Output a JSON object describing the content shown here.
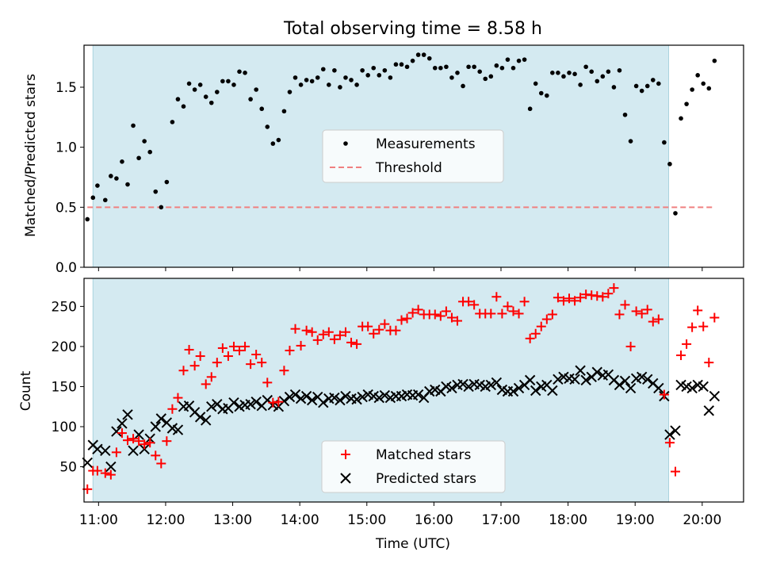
{
  "figure": {
    "title": "Total observing time = 8.58 h"
  },
  "colors": {
    "shade": "#d4eaf1",
    "threshold": "#f08080",
    "measurements": "#000000",
    "matched": "#ff0000",
    "predicted": "#000000"
  },
  "chart_data": [
    {
      "type": "scatter",
      "ylabel": "Matched/Predicted stars",
      "xlim": [
        "10:47",
        "20:37"
      ],
      "ylim": [
        0.0,
        1.85
      ],
      "yticks": [
        0.0,
        0.5,
        1.0,
        1.5
      ],
      "ytick_labels": [
        "0.0",
        "0.5",
        "1.0",
        "1.5"
      ],
      "shaded_interval": [
        "10:55",
        "19:30"
      ],
      "legend": {
        "position": "center",
        "entries": [
          "Measurements",
          "Threshold"
        ]
      },
      "threshold": {
        "name": "Threshold",
        "y": 0.5,
        "x": [
          "10:50",
          "20:10"
        ]
      },
      "series": [
        {
          "name": "Measurements",
          "marker": "dot",
          "x": [
            "10:50",
            "10:55",
            "10:59",
            "11:06",
            "11:11",
            "11:16",
            "11:21",
            "11:26",
            "11:31",
            "11:36",
            "11:41",
            "11:46",
            "11:51",
            "11:56",
            "12:01",
            "12:06",
            "12:11",
            "12:16",
            "12:21",
            "12:26",
            "12:31",
            "12:36",
            "12:41",
            "12:46",
            "12:51",
            "12:56",
            "13:01",
            "13:06",
            "13:11",
            "13:16",
            "13:21",
            "13:26",
            "13:31",
            "13:36",
            "13:41",
            "13:46",
            "13:51",
            "13:56",
            "14:01",
            "14:06",
            "14:11",
            "14:16",
            "14:21",
            "14:26",
            "14:31",
            "14:36",
            "14:41",
            "14:46",
            "14:51",
            "14:56",
            "15:01",
            "15:06",
            "15:11",
            "15:16",
            "15:21",
            "15:26",
            "15:31",
            "15:36",
            "15:41",
            "15:46",
            "15:51",
            "15:56",
            "16:01",
            "16:06",
            "16:11",
            "16:16",
            "16:21",
            "16:26",
            "16:31",
            "16:36",
            "16:41",
            "16:46",
            "16:51",
            "16:56",
            "17:01",
            "17:06",
            "17:11",
            "17:16",
            "17:21",
            "17:26",
            "17:31",
            "17:36",
            "17:41",
            "17:46",
            "17:51",
            "17:56",
            "18:01",
            "18:06",
            "18:11",
            "18:16",
            "18:21",
            "18:26",
            "18:31",
            "18:36",
            "18:41",
            "18:46",
            "18:51",
            "18:56",
            "19:01",
            "19:06",
            "19:11",
            "19:16",
            "19:21",
            "19:26",
            "19:31",
            "19:36",
            "19:41",
            "19:46",
            "19:51",
            "19:56",
            "20:01",
            "20:06",
            "20:11"
          ],
          "y": [
            0.4,
            0.58,
            0.68,
            0.56,
            0.76,
            0.74,
            0.88,
            0.69,
            1.18,
            0.91,
            1.05,
            0.96,
            0.63,
            0.5,
            0.71,
            1.21,
            1.4,
            1.34,
            1.53,
            1.48,
            1.52,
            1.42,
            1.37,
            1.46,
            1.55,
            1.55,
            1.52,
            1.63,
            1.62,
            1.4,
            1.48,
            1.32,
            1.17,
            1.03,
            1.06,
            1.3,
            1.46,
            1.58,
            1.52,
            1.56,
            1.55,
            1.58,
            1.65,
            1.52,
            1.64,
            1.5,
            1.58,
            1.56,
            1.52,
            1.64,
            1.6,
            1.66,
            1.6,
            1.64,
            1.58,
            1.69,
            1.69,
            1.67,
            1.72,
            1.77,
            1.77,
            1.74,
            1.66,
            1.66,
            1.67,
            1.58,
            1.62,
            1.51,
            1.67,
            1.67,
            1.63,
            1.57,
            1.59,
            1.68,
            1.66,
            1.73,
            1.66,
            1.72,
            1.73,
            1.32,
            1.53,
            1.45,
            1.43,
            1.62,
            1.62,
            1.59,
            1.62,
            1.61,
            1.52,
            1.67,
            1.63,
            1.55,
            1.59,
            1.63,
            1.5,
            1.64,
            1.27,
            1.05,
            1.51,
            1.47,
            1.51,
            1.56,
            1.53,
            1.04,
            0.86,
            0.45,
            1.24,
            1.36,
            1.48,
            1.6,
            1.53,
            1.49,
            1.72
          ]
        }
      ]
    },
    {
      "type": "scatter",
      "xlabel": "Time (UTC)",
      "ylabel": "Count",
      "xlim": [
        "10:47",
        "20:37"
      ],
      "ylim": [
        6,
        285
      ],
      "xticks": [
        "11:00",
        "12:00",
        "13:00",
        "14:00",
        "15:00",
        "16:00",
        "17:00",
        "18:00",
        "19:00",
        "20:00"
      ],
      "yticks": [
        50,
        100,
        150,
        200,
        250
      ],
      "ytick_labels": [
        "50",
        "100",
        "150",
        "200",
        "250"
      ],
      "shaded_interval": [
        "10:55",
        "19:30"
      ],
      "legend": {
        "position": "lower center",
        "entries": [
          "Matched stars",
          "Predicted stars"
        ]
      },
      "series": [
        {
          "name": "Matched stars",
          "marker": "plus",
          "x": [
            "10:50",
            "10:55",
            "10:59",
            "11:06",
            "11:11",
            "11:16",
            "11:21",
            "11:26",
            "11:31",
            "11:36",
            "11:41",
            "11:46",
            "11:51",
            "11:56",
            "12:01",
            "12:06",
            "12:11",
            "12:16",
            "12:21",
            "12:26",
            "12:31",
            "12:36",
            "12:41",
            "12:46",
            "12:51",
            "12:56",
            "13:01",
            "13:06",
            "13:11",
            "13:16",
            "13:21",
            "13:26",
            "13:31",
            "13:36",
            "13:41",
            "13:46",
            "13:51",
            "13:56",
            "14:01",
            "14:06",
            "14:11",
            "14:16",
            "14:21",
            "14:26",
            "14:31",
            "14:36",
            "14:41",
            "14:46",
            "14:51",
            "14:56",
            "15:01",
            "15:06",
            "15:11",
            "15:16",
            "15:21",
            "15:26",
            "15:31",
            "15:36",
            "15:41",
            "15:46",
            "15:51",
            "15:56",
            "16:01",
            "16:06",
            "16:11",
            "16:16",
            "16:21",
            "16:26",
            "16:31",
            "16:36",
            "16:41",
            "16:46",
            "16:51",
            "16:56",
            "17:01",
            "17:06",
            "17:11",
            "17:16",
            "17:21",
            "17:26",
            "17:31",
            "17:36",
            "17:41",
            "17:46",
            "17:51",
            "17:56",
            "18:01",
            "18:06",
            "18:11",
            "18:16",
            "18:21",
            "18:26",
            "18:31",
            "18:36",
            "18:41",
            "18:46",
            "18:51",
            "18:56",
            "19:01",
            "19:06",
            "19:11",
            "19:16",
            "19:21",
            "19:26",
            "19:31",
            "19:36",
            "19:41",
            "19:46",
            "19:51",
            "19:56",
            "20:01",
            "20:06",
            "20:11"
          ],
          "y": [
            22,
            45,
            45,
            42,
            40,
            68,
            92,
            83,
            85,
            82,
            78,
            80,
            64,
            54,
            82,
            122,
            136,
            170,
            196,
            176,
            188,
            153,
            162,
            180,
            198,
            188,
            200,
            195,
            200,
            178,
            190,
            180,
            155,
            130,
            131,
            170,
            195,
            222,
            201,
            220,
            218,
            208,
            215,
            218,
            209,
            214,
            218,
            205,
            203,
            225,
            225,
            216,
            221,
            228,
            220,
            220,
            233,
            235,
            242,
            246,
            240,
            240,
            240,
            238,
            244,
            236,
            232,
            256,
            256,
            252,
            241,
            241,
            241,
            262,
            241,
            250,
            244,
            241,
            256,
            210,
            216,
            225,
            234,
            240,
            261,
            257,
            260,
            257,
            261,
            265,
            264,
            263,
            262,
            266,
            273,
            240,
            252,
            200,
            244,
            241,
            246,
            231,
            234,
            140,
            80,
            44,
            189,
            203,
            224,
            245,
            225,
            180,
            236
          ]
        },
        {
          "name": "Predicted stars",
          "marker": "x",
          "x": [
            "10:50",
            "10:55",
            "10:59",
            "11:06",
            "11:11",
            "11:16",
            "11:21",
            "11:26",
            "11:31",
            "11:36",
            "11:41",
            "11:46",
            "11:51",
            "11:56",
            "12:01",
            "12:06",
            "12:11",
            "12:16",
            "12:21",
            "12:26",
            "12:31",
            "12:36",
            "12:41",
            "12:46",
            "12:51",
            "12:56",
            "13:01",
            "13:06",
            "13:11",
            "13:16",
            "13:21",
            "13:26",
            "13:31",
            "13:36",
            "13:41",
            "13:46",
            "13:51",
            "13:56",
            "14:01",
            "14:06",
            "14:11",
            "14:16",
            "14:21",
            "14:26",
            "14:31",
            "14:36",
            "14:41",
            "14:46",
            "14:51",
            "14:56",
            "15:01",
            "15:06",
            "15:11",
            "15:16",
            "15:21",
            "15:26",
            "15:31",
            "15:36",
            "15:41",
            "15:46",
            "15:51",
            "15:56",
            "16:01",
            "16:06",
            "16:11",
            "16:16",
            "16:21",
            "16:26",
            "16:31",
            "16:36",
            "16:41",
            "16:46",
            "16:51",
            "16:56",
            "17:01",
            "17:06",
            "17:11",
            "17:16",
            "17:21",
            "17:26",
            "17:31",
            "17:36",
            "17:41",
            "17:46",
            "17:51",
            "17:56",
            "18:01",
            "18:06",
            "18:11",
            "18:16",
            "18:21",
            "18:26",
            "18:31",
            "18:36",
            "18:41",
            "18:46",
            "18:51",
            "18:56",
            "19:01",
            "19:06",
            "19:11",
            "19:16",
            "19:21",
            "19:26",
            "19:31",
            "19:36",
            "19:41",
            "19:46",
            "19:51",
            "19:56",
            "20:01",
            "20:06",
            "20:11"
          ],
          "y": [
            55,
            77,
            72,
            70,
            50,
            94,
            104,
            115,
            70,
            90,
            72,
            85,
            100,
            110,
            105,
            98,
            96,
            125,
            126,
            118,
            112,
            108,
            125,
            128,
            122,
            123,
            130,
            125,
            127,
            128,
            131,
            126,
            133,
            127,
            125,
            132,
            137,
            140,
            135,
            138,
            133,
            137,
            130,
            135,
            136,
            133,
            138,
            135,
            134,
            137,
            140,
            138,
            136,
            139,
            136,
            138,
            138,
            140,
            139,
            140,
            136,
            144,
            146,
            144,
            150,
            148,
            152,
            153,
            150,
            153,
            152,
            150,
            152,
            155,
            146,
            144,
            144,
            148,
            152,
            158,
            145,
            150,
            152,
            145,
            159,
            162,
            160,
            159,
            170,
            158,
            162,
            168,
            164,
            165,
            158,
            152,
            157,
            148,
            160,
            162,
            159,
            154,
            148,
            138,
            90,
            95,
            152,
            150,
            148,
            152,
            150,
            120,
            138
          ]
        }
      ]
    }
  ]
}
